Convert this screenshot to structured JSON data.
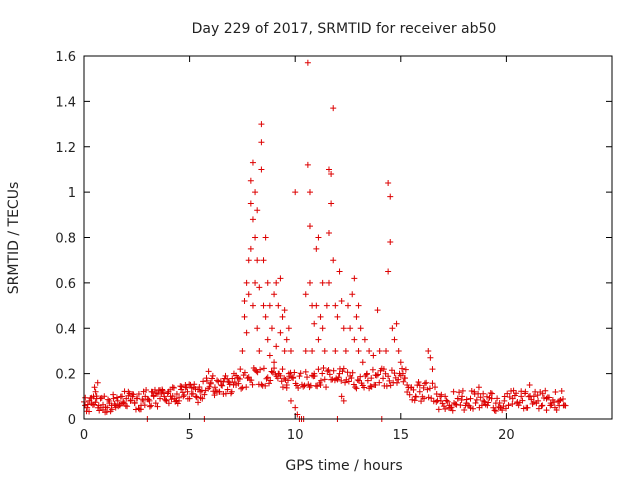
{
  "chart_data": {
    "type": "scatter",
    "title": "Day 229 of 2017, SRMTID for receiver ab50",
    "xlabel": "GPS time / hours",
    "ylabel": "SRMTID / TECUs",
    "xlim": [
      0,
      25
    ],
    "ylim": [
      0,
      1.6
    ],
    "xticks": [
      0,
      5,
      10,
      15,
      20
    ],
    "yticks": [
      0,
      0.2,
      0.4,
      0.6,
      0.8,
      1,
      1.2,
      1.4,
      1.6
    ],
    "ytick_labels": [
      "0",
      "0.2",
      "0.4",
      "0.6",
      "0.8",
      "1",
      "1.2",
      "1.4",
      "1.6"
    ],
    "grid": false,
    "marker": "+",
    "color": "#dd0000",
    "series": [
      {
        "name": "SRMTID",
        "points": [
          [
            0.05,
            0.06
          ],
          [
            0.15,
            0.05
          ],
          [
            0.25,
            0.08
          ],
          [
            0.35,
            0.07
          ],
          [
            0.45,
            0.1
          ],
          [
            0.5,
            0.14
          ],
          [
            0.55,
            0.12
          ],
          [
            0.6,
            0.09
          ],
          [
            0.65,
            0.16
          ],
          [
            0.7,
            0.06
          ],
          [
            0.8,
            0.05
          ],
          [
            0.9,
            0.04
          ],
          [
            1.0,
            0.03
          ],
          [
            1.1,
            0.05
          ],
          [
            1.2,
            0.07
          ],
          [
            1.3,
            0.06
          ],
          [
            1.4,
            0.09
          ],
          [
            1.5,
            0.05
          ],
          [
            1.6,
            0.08
          ],
          [
            1.7,
            0.06
          ],
          [
            1.8,
            0.1
          ],
          [
            1.9,
            0.07
          ],
          [
            2.0,
            0.09
          ],
          [
            2.1,
            0.12
          ],
          [
            2.2,
            0.08
          ],
          [
            2.3,
            0.1
          ],
          [
            2.4,
            0.07
          ],
          [
            2.5,
            0.09
          ],
          [
            2.6,
            0.11
          ],
          [
            2.7,
            0.06
          ],
          [
            2.8,
            0.08
          ],
          [
            2.9,
            0.1
          ],
          [
            3.0,
            0.0
          ],
          [
            3.1,
            0.08
          ],
          [
            3.2,
            0.12
          ],
          [
            3.3,
            0.1
          ],
          [
            3.4,
            0.07
          ],
          [
            3.5,
            0.11
          ],
          [
            3.6,
            0.09
          ],
          [
            3.7,
            0.13
          ],
          [
            3.8,
            0.1
          ],
          [
            3.9,
            0.08
          ],
          [
            4.0,
            0.12
          ],
          [
            4.1,
            0.1
          ],
          [
            4.2,
            0.14
          ],
          [
            4.3,
            0.09
          ],
          [
            4.4,
            0.11
          ],
          [
            4.5,
            0.08
          ],
          [
            4.6,
            0.13
          ],
          [
            4.7,
            0.1
          ],
          [
            4.8,
            0.15
          ],
          [
            4.9,
            0.12
          ],
          [
            5.0,
            0.09
          ],
          [
            5.1,
            0.11
          ],
          [
            5.2,
            0.14
          ],
          [
            5.3,
            0.1
          ],
          [
            5.4,
            0.13
          ],
          [
            5.5,
            0.12
          ],
          [
            5.6,
            0.09
          ],
          [
            5.7,
            0.0
          ],
          [
            5.8,
            0.18
          ],
          [
            5.9,
            0.21
          ],
          [
            6.0,
            0.16
          ],
          [
            6.1,
            0.19
          ],
          [
            6.2,
            0.14
          ],
          [
            6.3,
            0.17
          ],
          [
            6.4,
            0.12
          ],
          [
            6.5,
            0.15
          ],
          [
            6.6,
            0.11
          ],
          [
            6.7,
            0.19
          ],
          [
            6.8,
            0.13
          ],
          [
            6.9,
            0.16
          ],
          [
            7.0,
            0.12
          ],
          [
            7.1,
            0.2
          ],
          [
            7.2,
            0.15
          ],
          [
            7.3,
            0.18
          ],
          [
            7.4,
            0.22
          ],
          [
            7.5,
            0.3
          ],
          [
            7.6,
            0.45
          ],
          [
            7.6,
            0.52
          ],
          [
            7.7,
            0.6
          ],
          [
            7.7,
            0.38
          ],
          [
            7.8,
            0.7
          ],
          [
            7.8,
            0.55
          ],
          [
            7.9,
            0.95
          ],
          [
            7.9,
            1.05
          ],
          [
            7.9,
            0.75
          ],
          [
            8.0,
            1.13
          ],
          [
            8.0,
            0.88
          ],
          [
            8.0,
            0.5
          ],
          [
            8.1,
            1.0
          ],
          [
            8.1,
            0.8
          ],
          [
            8.1,
            0.6
          ],
          [
            8.2,
            0.92
          ],
          [
            8.2,
            0.7
          ],
          [
            8.2,
            0.4
          ],
          [
            8.3,
            0.58
          ],
          [
            8.3,
            0.3
          ],
          [
            8.4,
            1.22
          ],
          [
            8.4,
            1.3
          ],
          [
            8.4,
            1.1
          ],
          [
            8.5,
            0.7
          ],
          [
            8.5,
            0.5
          ],
          [
            8.6,
            0.8
          ],
          [
            8.6,
            0.45
          ],
          [
            8.7,
            0.6
          ],
          [
            8.7,
            0.35
          ],
          [
            8.8,
            0.5
          ],
          [
            8.8,
            0.28
          ],
          [
            8.9,
            0.4
          ],
          [
            9.0,
            0.25
          ],
          [
            9.0,
            0.55
          ],
          [
            9.1,
            0.6
          ],
          [
            9.1,
            0.32
          ],
          [
            9.2,
            0.5
          ],
          [
            9.2,
            0.2
          ],
          [
            9.3,
            0.62
          ],
          [
            9.3,
            0.38
          ],
          [
            9.4,
            0.45
          ],
          [
            9.4,
            0.22
          ],
          [
            9.5,
            0.48
          ],
          [
            9.5,
            0.3
          ],
          [
            9.6,
            0.35
          ],
          [
            9.6,
            0.15
          ],
          [
            9.7,
            0.4
          ],
          [
            9.7,
            0.2
          ],
          [
            9.8,
            0.3
          ],
          [
            9.8,
            0.08
          ],
          [
            9.9,
            0.18
          ],
          [
            10.0,
            0.05
          ],
          [
            10.0,
            1.0
          ],
          [
            10.1,
            0.02
          ],
          [
            10.2,
            0.0
          ],
          [
            10.3,
            0.0
          ],
          [
            10.4,
            0.0
          ],
          [
            10.5,
            0.55
          ],
          [
            10.5,
            0.3
          ],
          [
            10.6,
            1.57
          ],
          [
            10.6,
            1.12
          ],
          [
            10.7,
            1.0
          ],
          [
            10.7,
            0.85
          ],
          [
            10.7,
            0.6
          ],
          [
            10.8,
            0.5
          ],
          [
            10.8,
            0.3
          ],
          [
            10.9,
            0.42
          ],
          [
            10.9,
            0.2
          ],
          [
            11.0,
            0.75
          ],
          [
            11.0,
            0.5
          ],
          [
            11.1,
            0.8
          ],
          [
            11.1,
            0.35
          ],
          [
            11.2,
            0.45
          ],
          [
            11.2,
            0.15
          ],
          [
            11.3,
            0.6
          ],
          [
            11.3,
            0.4
          ],
          [
            11.4,
            0.3
          ],
          [
            11.5,
            0.5
          ],
          [
            11.6,
            1.1
          ],
          [
            11.6,
            0.82
          ],
          [
            11.6,
            0.6
          ],
          [
            11.7,
            1.08
          ],
          [
            11.7,
            0.95
          ],
          [
            11.8,
            1.37
          ],
          [
            11.8,
            0.7
          ],
          [
            11.9,
            0.5
          ],
          [
            11.9,
            0.3
          ],
          [
            12.0,
            0.0
          ],
          [
            12.0,
            0.45
          ],
          [
            12.1,
            0.65
          ],
          [
            12.1,
            0.2
          ],
          [
            12.2,
            0.52
          ],
          [
            12.2,
            0.1
          ],
          [
            12.3,
            0.4
          ],
          [
            12.3,
            0.08
          ],
          [
            12.4,
            0.3
          ],
          [
            12.5,
            0.5
          ],
          [
            12.6,
            0.4
          ],
          [
            12.7,
            0.55
          ],
          [
            12.8,
            0.62
          ],
          [
            12.8,
            0.35
          ],
          [
            12.9,
            0.45
          ],
          [
            13.0,
            0.3
          ],
          [
            13.0,
            0.5
          ],
          [
            13.1,
            0.4
          ],
          [
            13.2,
            0.25
          ],
          [
            13.3,
            0.35
          ],
          [
            13.4,
            0.2
          ],
          [
            13.5,
            0.3
          ],
          [
            13.6,
            0.18
          ],
          [
            13.7,
            0.28
          ],
          [
            13.8,
            0.15
          ],
          [
            13.9,
            0.48
          ],
          [
            14.0,
            0.3
          ],
          [
            14.1,
            0.0
          ],
          [
            14.2,
            0.22
          ],
          [
            14.3,
            0.3
          ],
          [
            14.4,
            0.65
          ],
          [
            14.4,
            1.04
          ],
          [
            14.5,
            0.98
          ],
          [
            14.5,
            0.78
          ],
          [
            14.6,
            0.4
          ],
          [
            14.7,
            0.35
          ],
          [
            14.8,
            0.42
          ],
          [
            14.9,
            0.3
          ],
          [
            15.0,
            0.25
          ],
          [
            15.1,
            0.2
          ],
          [
            15.2,
            0.18
          ],
          [
            15.3,
            0.15
          ],
          [
            15.5,
            0.14
          ],
          [
            15.7,
            0.1
          ],
          [
            15.9,
            0.12
          ],
          [
            16.1,
            0.09
          ],
          [
            16.3,
            0.3
          ],
          [
            16.4,
            0.27
          ],
          [
            16.5,
            0.22
          ],
          [
            16.7,
            0.11
          ],
          [
            16.9,
            0.08
          ],
          [
            17.1,
            0.1
          ],
          [
            17.3,
            0.06
          ],
          [
            17.5,
            0.12
          ],
          [
            17.7,
            0.09
          ],
          [
            17.9,
            0.1
          ],
          [
            18.1,
            0.07
          ],
          [
            18.3,
            0.09
          ],
          [
            18.5,
            0.11
          ],
          [
            18.7,
            0.14
          ],
          [
            18.9,
            0.08
          ],
          [
            19.1,
            0.06
          ],
          [
            19.3,
            0.09
          ],
          [
            19.5,
            0.07
          ],
          [
            19.7,
            0.05
          ],
          [
            19.9,
            0.08
          ],
          [
            20.1,
            0.06
          ],
          [
            20.3,
            0.09
          ],
          [
            20.5,
            0.07
          ],
          [
            20.7,
            0.1
          ],
          [
            20.9,
            0.12
          ],
          [
            21.1,
            0.15
          ],
          [
            21.3,
            0.1
          ],
          [
            21.5,
            0.08
          ],
          [
            21.7,
            0.06
          ],
          [
            21.9,
            0.09
          ],
          [
            22.1,
            0.07
          ],
          [
            22.3,
            0.05
          ],
          [
            22.5,
            0.08
          ],
          [
            22.7,
            0.06
          ]
        ]
      }
    ]
  }
}
